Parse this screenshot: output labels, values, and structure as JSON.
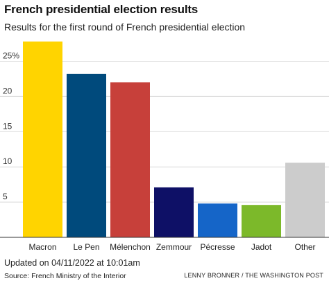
{
  "header": {
    "title": "French presidential election results",
    "subtitle": "Results for the first round of French presidential election"
  },
  "footer": {
    "updated": "Updated on 04/11/2022 at 10:01am",
    "source": "Source: French Ministry of the Interior",
    "credit": "LENNY BRONNER / THE WASHINGTON POST"
  },
  "chart_data": {
    "type": "bar",
    "categories": [
      "Macron",
      "Le Pen",
      "Mélenchon",
      "Zemmour",
      "Pécresse",
      "Jadot",
      "Other"
    ],
    "values": [
      27.8,
      23.2,
      22.0,
      7.1,
      4.8,
      4.6,
      10.6
    ],
    "colors": [
      "#FFD400",
      "#004A7C",
      "#C7403A",
      "#0E1066",
      "#1565C8",
      "#7CB92A",
      "#CCCCCC"
    ],
    "yticks": [
      5,
      10,
      15,
      20,
      25
    ],
    "ytick_labels": [
      "5",
      "10",
      "15",
      "20",
      "25%"
    ],
    "ylim": [
      0,
      28
    ],
    "grid": true,
    "xlabel": "",
    "ylabel": ""
  }
}
